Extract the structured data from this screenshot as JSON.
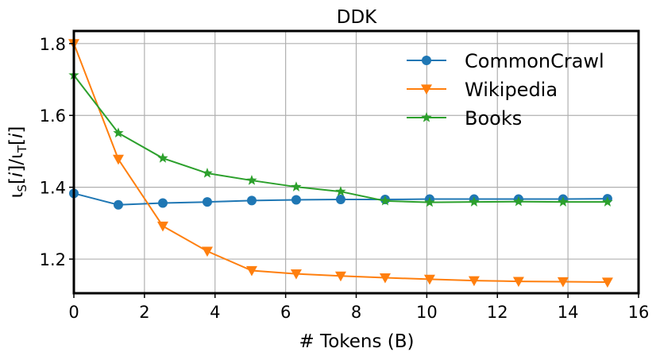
{
  "chart_data": {
    "type": "line",
    "title": "DDK",
    "xlabel": "# Tokens (B)",
    "ylabel_parts": {
      "l1": "ι",
      "s1": "S",
      "m1": "[",
      "i1": "i",
      "m2": "]/",
      "l2": "ι",
      "s2": "T",
      "m3": "[",
      "i2": "i",
      "m4": "]"
    },
    "xlim": [
      0,
      16
    ],
    "ylim": [
      1.105,
      1.835
    ],
    "xticks": [
      0,
      2,
      4,
      6,
      8,
      10,
      12,
      14,
      16
    ],
    "xtick_labels": [
      "0",
      "2",
      "4",
      "6",
      "8",
      "10",
      "12",
      "14",
      "16"
    ],
    "yticks": [
      1.2,
      1.4,
      1.6,
      1.8
    ],
    "ytick_labels": [
      "1.2",
      "1.4",
      "1.6",
      "1.8"
    ],
    "grid": true,
    "legend_position": "top-right",
    "x": [
      0,
      1.26,
      2.52,
      3.78,
      5.04,
      6.3,
      7.56,
      8.82,
      10.08,
      11.34,
      12.6,
      13.86,
      15.12
    ],
    "series": [
      {
        "name": "CommonCrawl",
        "color": "#1f77b4",
        "marker": "circle",
        "values": [
          1.383,
          1.351,
          1.356,
          1.359,
          1.363,
          1.365,
          1.366,
          1.366,
          1.367,
          1.367,
          1.367,
          1.367,
          1.368
        ]
      },
      {
        "name": "Wikipedia",
        "color": "#ff7f0e",
        "marker": "triangle-down",
        "values": [
          1.8,
          1.478,
          1.292,
          1.222,
          1.168,
          1.159,
          1.153,
          1.148,
          1.144,
          1.14,
          1.138,
          1.137,
          1.136
        ]
      },
      {
        "name": "Books",
        "color": "#2ca02c",
        "marker": "star",
        "values": [
          1.712,
          1.551,
          1.481,
          1.439,
          1.419,
          1.401,
          1.388,
          1.362,
          1.358,
          1.359,
          1.36,
          1.359,
          1.359
        ]
      }
    ]
  }
}
